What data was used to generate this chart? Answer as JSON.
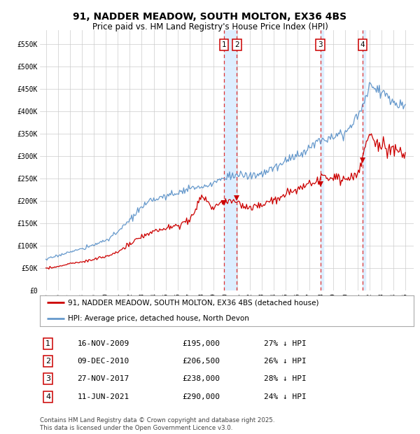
{
  "title": "91, NADDER MEADOW, SOUTH MOLTON, EX36 4BS",
  "subtitle": "Price paid vs. HM Land Registry's House Price Index (HPI)",
  "title_fontsize": 10,
  "subtitle_fontsize": 8.5,
  "legend_line1": "91, NADDER MEADOW, SOUTH MOLTON, EX36 4BS (detached house)",
  "legend_line2": "HPI: Average price, detached house, North Devon",
  "footnote": "Contains HM Land Registry data © Crown copyright and database right 2025.\nThis data is licensed under the Open Government Licence v3.0.",
  "purchases": [
    {
      "num": 1,
      "date": "16-NOV-2009",
      "price": 195000,
      "pct": "27% ↓ HPI",
      "year_x": 2009.88
    },
    {
      "num": 2,
      "date": "09-DEC-2010",
      "price": 206500,
      "pct": "26% ↓ HPI",
      "year_x": 2010.94
    },
    {
      "num": 3,
      "date": "27-NOV-2017",
      "price": 238000,
      "pct": "28% ↓ HPI",
      "year_x": 2017.9
    },
    {
      "num": 4,
      "date": "11-JUN-2021",
      "price": 290000,
      "pct": "24% ↓ HPI",
      "year_x": 2021.44
    }
  ],
  "hpi_color": "#6699cc",
  "price_color": "#cc0000",
  "vline_color": "#dd3333",
  "vspan_color": "#ddeeff",
  "grid_color": "#cccccc",
  "bg_color": "#ffffff",
  "ylim": [
    0,
    580000
  ],
  "xlim_start": 1994.5,
  "xlim_end": 2025.7,
  "yticks": [
    0,
    50000,
    100000,
    150000,
    200000,
    250000,
    300000,
    350000,
    400000,
    450000,
    500000,
    550000
  ],
  "ytick_labels": [
    "£0",
    "£50K",
    "£100K",
    "£150K",
    "£200K",
    "£250K",
    "£300K",
    "£350K",
    "£400K",
    "£450K",
    "£500K",
    "£550K"
  ],
  "xticks": [
    1995,
    1996,
    1997,
    1998,
    1999,
    2000,
    2001,
    2002,
    2003,
    2004,
    2005,
    2006,
    2007,
    2008,
    2009,
    2010,
    2011,
    2012,
    2013,
    2014,
    2015,
    2016,
    2017,
    2018,
    2019,
    2020,
    2021,
    2022,
    2023,
    2024,
    2025
  ],
  "hpi_anchors": {
    "1995": 70000,
    "1996": 78000,
    "1997": 87000,
    "1998": 93000,
    "1999": 102000,
    "2000": 113000,
    "2001": 130000,
    "2002": 158000,
    "2003": 185000,
    "2004": 205000,
    "2005": 210000,
    "2006": 218000,
    "2007": 230000,
    "2008": 228000,
    "2009": 240000,
    "2010": 255000,
    "2011": 258000,
    "2012": 255000,
    "2013": 260000,
    "2014": 273000,
    "2015": 288000,
    "2016": 303000,
    "2017": 318000,
    "2018": 338000,
    "2019": 348000,
    "2020": 352000,
    "2021": 385000,
    "2022": 455000,
    "2023": 445000,
    "2024": 420000,
    "2025": 415000
  },
  "price_anchors": {
    "1995": 50000,
    "1996": 54000,
    "1997": 60000,
    "1998": 64000,
    "1999": 70000,
    "2000": 76000,
    "2001": 87000,
    "2002": 103000,
    "2003": 120000,
    "2004": 133000,
    "2005": 138000,
    "2006": 145000,
    "2007": 158000,
    "2008": 210000,
    "2009": 185000,
    "2010": 200000,
    "2011": 195000,
    "2012": 185000,
    "2013": 190000,
    "2014": 202000,
    "2015": 214000,
    "2016": 225000,
    "2017": 238000,
    "2018": 248000,
    "2019": 253000,
    "2020": 248000,
    "2021": 262000,
    "2022": 345000,
    "2023": 318000,
    "2024": 315000,
    "2025": 308000
  }
}
